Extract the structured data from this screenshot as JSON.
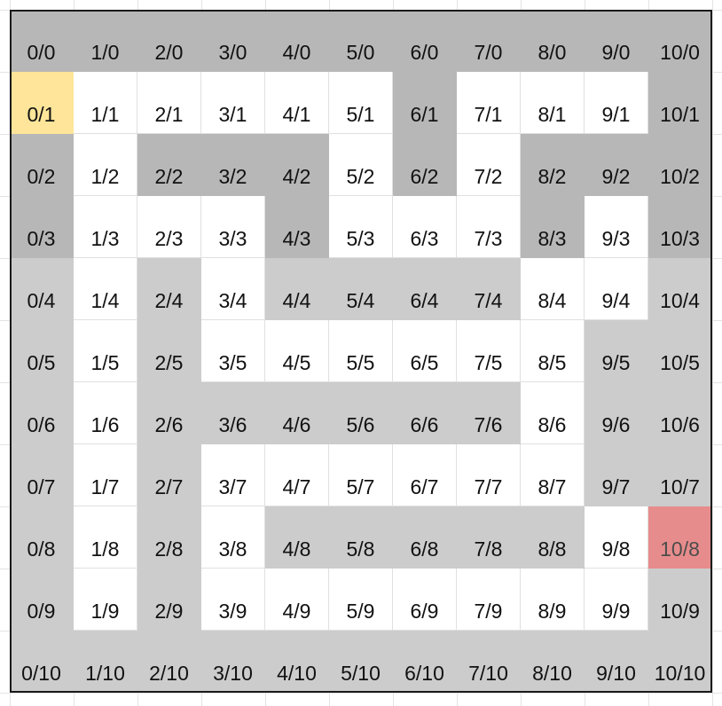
{
  "colors": {
    "wall_dark": "#b7b7b7",
    "wall_light": "#cccccc",
    "open": "#ffffff",
    "start": "#ffe599",
    "goal": "#e06666"
  },
  "legend": {
    "D": "wall_dark",
    "L": "wall_light",
    "W": "open",
    "S": "start",
    "G": "goal"
  },
  "rows": [
    [
      "D",
      "D",
      "D",
      "D",
      "D",
      "D",
      "D",
      "D",
      "D",
      "D",
      "D"
    ],
    [
      "S",
      "W",
      "W",
      "W",
      "W",
      "W",
      "D",
      "W",
      "W",
      "W",
      "D"
    ],
    [
      "D",
      "W",
      "D",
      "D",
      "D",
      "W",
      "D",
      "W",
      "D",
      "D",
      "D"
    ],
    [
      "D",
      "W",
      "W",
      "W",
      "D",
      "W",
      "W",
      "W",
      "D",
      "W",
      "D"
    ],
    [
      "L",
      "W",
      "L",
      "W",
      "L",
      "L",
      "L",
      "L",
      "W",
      "W",
      "L"
    ],
    [
      "L",
      "W",
      "L",
      "W",
      "W",
      "W",
      "W",
      "W",
      "W",
      "L",
      "L"
    ],
    [
      "L",
      "W",
      "L",
      "L",
      "L",
      "L",
      "L",
      "L",
      "W",
      "L",
      "L"
    ],
    [
      "L",
      "W",
      "L",
      "W",
      "W",
      "W",
      "W",
      "W",
      "W",
      "L",
      "L"
    ],
    [
      "L",
      "W",
      "L",
      "W",
      "L",
      "L",
      "L",
      "L",
      "L",
      "W",
      "G"
    ],
    [
      "L",
      "W",
      "L",
      "W",
      "W",
      "W",
      "W",
      "W",
      "W",
      "W",
      "L"
    ],
    [
      "L",
      "L",
      "L",
      "L",
      "L",
      "L",
      "L",
      "L",
      "L",
      "L",
      "L"
    ]
  ],
  "labels": [
    [
      "0/0",
      "1/0",
      "2/0",
      "3/0",
      "4/0",
      "5/0",
      "6/0",
      "7/0",
      "8/0",
      "9/0",
      "10/0"
    ],
    [
      "0/1",
      "1/1",
      "2/1",
      "3/1",
      "4/1",
      "5/1",
      "6/1",
      "7/1",
      "8/1",
      "9/1",
      "10/1"
    ],
    [
      "0/2",
      "1/2",
      "2/2",
      "3/2",
      "4/2",
      "5/2",
      "6/2",
      "7/2",
      "8/2",
      "9/2",
      "10/2"
    ],
    [
      "0/3",
      "1/3",
      "2/3",
      "3/3",
      "4/3",
      "5/3",
      "6/3",
      "7/3",
      "8/3",
      "9/3",
      "10/3"
    ],
    [
      "0/4",
      "1/4",
      "2/4",
      "3/4",
      "4/4",
      "5/4",
      "6/4",
      "7/4",
      "8/4",
      "9/4",
      "10/4"
    ],
    [
      "0/5",
      "1/5",
      "2/5",
      "3/5",
      "4/5",
      "5/5",
      "6/5",
      "7/5",
      "8/5",
      "9/5",
      "10/5"
    ],
    [
      "0/6",
      "1/6",
      "2/6",
      "3/6",
      "4/6",
      "5/6",
      "6/6",
      "7/6",
      "8/6",
      "9/6",
      "10/6"
    ],
    [
      "0/7",
      "1/7",
      "2/7",
      "3/7",
      "4/7",
      "5/7",
      "6/7",
      "7/7",
      "8/7",
      "9/7",
      "10/7"
    ],
    [
      "0/8",
      "1/8",
      "2/8",
      "3/8",
      "4/8",
      "5/8",
      "6/8",
      "7/8",
      "8/8",
      "9/8",
      "10/8"
    ],
    [
      "0/9",
      "1/9",
      "2/9",
      "3/9",
      "4/9",
      "5/9",
      "6/9",
      "7/9",
      "8/9",
      "9/9",
      "10/9"
    ],
    [
      "0/10",
      "1/10",
      "2/10",
      "3/10",
      "4/10",
      "5/10",
      "6/10",
      "7/10",
      "8/10",
      "9/10",
      "10/10"
    ]
  ]
}
